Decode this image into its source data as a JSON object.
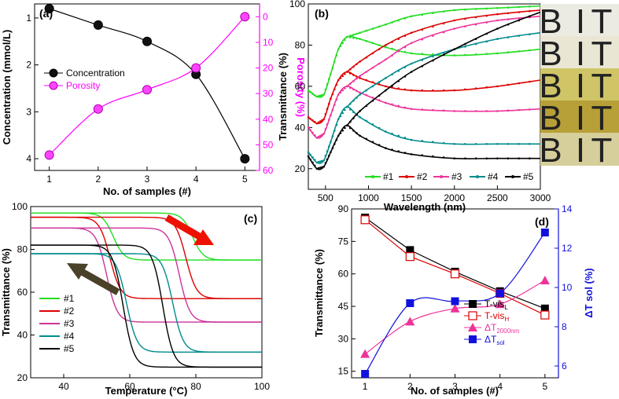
{
  "chart_data": [
    {
      "panel": "(a)",
      "type": "scatter",
      "xlabel": "No. of samples (#)",
      "ylabel_left": "Concentration (mmol/L)",
      "ylabel_right": "Porosity (%)",
      "xlim": [
        0.7,
        5.3
      ],
      "ylim_left": [
        4.25,
        0.7
      ],
      "ylim_right": [
        60,
        -5
      ],
      "xticks": [
        "1",
        "2",
        "3",
        "4",
        "5"
      ],
      "yticks_left": [
        "1",
        "2",
        "3",
        "4"
      ],
      "yticks_right": [
        "0",
        "10",
        "20",
        "30",
        "40",
        "50",
        "60"
      ],
      "series": [
        {
          "name": "Concentration",
          "axis": "left",
          "color": "#000000",
          "x": [
            1,
            2,
            3,
            4,
            5
          ],
          "y": [
            0.8,
            1.15,
            1.5,
            2.2,
            4.0
          ]
        },
        {
          "name": "Porosity",
          "axis": "right",
          "color": "#ff00ff",
          "x": [
            1,
            2,
            3,
            4,
            5
          ],
          "y": [
            54,
            36,
            28.5,
            20,
            0
          ]
        }
      ],
      "legend": [
        "Concentration",
        "Porosity"
      ]
    },
    {
      "panel": "(b)",
      "type": "line",
      "xlabel": "Wavelength (nm)",
      "ylabel": "Transmittance (%)",
      "xlim": [
        300,
        3000
      ],
      "ylim": [
        10,
        100
      ],
      "xticks": [
        "500",
        "1000",
        "1500",
        "2000",
        "2500",
        "3000"
      ],
      "yticks": [
        "20",
        "40",
        "60",
        "80",
        "100"
      ],
      "series_group": "pairs",
      "series": [
        {
          "name": "#1",
          "color": "#22dd22",
          "low": {
            "x": [
              300,
              400,
              480,
              560,
              650,
              750,
              900,
              1200,
              1500,
              2000,
              2500,
              3000
            ],
            "y": [
              58,
              55,
              56,
              66,
              78,
              84,
              83,
              79,
              76,
              75,
              76,
              78
            ]
          },
          "high": {
            "x": [
              750,
              900,
              1200,
              1500,
              2000,
              2500,
              3000
            ],
            "y": [
              84,
              86,
              90,
              94,
              97,
              98,
              99
            ]
          }
        },
        {
          "name": "#2",
          "color": "#dd0000",
          "low": {
            "x": [
              300,
              400,
              480,
              560,
              650,
              750,
              900,
              1200,
              1500,
              2000,
              2500,
              3000
            ],
            "y": [
              45,
              42,
              44,
              54,
              63,
              67,
              64,
              60,
              58,
              58,
              60,
              63
            ]
          },
          "high": {
            "x": [
              750,
              900,
              1200,
              1500,
              2000,
              2500,
              3000
            ],
            "y": [
              67,
              72,
              80,
              86,
              92,
              95,
              97
            ]
          }
        },
        {
          "name": "#3",
          "color": "#ee3399",
          "low": {
            "x": [
              300,
              400,
              480,
              560,
              650,
              750,
              900,
              1200,
              1500,
              2000,
              2500,
              3000
            ],
            "y": [
              40,
              35,
              37,
              46,
              56,
              60,
              57,
              52,
              49,
              48,
              48,
              49
            ]
          },
          "high": {
            "x": [
              750,
              900,
              1200,
              1500,
              2000,
              2500,
              3000
            ],
            "y": [
              60,
              65,
              73,
              81,
              88,
              92,
              94
            ]
          }
        },
        {
          "name": "#4",
          "color": "#008b8b",
          "low": {
            "x": [
              300,
              400,
              480,
              560,
              650,
              750,
              900,
              1200,
              1500,
              2000,
              2500,
              3000
            ],
            "y": [
              28,
              23,
              24,
              33,
              44,
              50,
              45,
              38,
              34,
              32,
              32,
              32
            ]
          },
          "high": {
            "x": [
              750,
              900,
              1200,
              1500,
              2000,
              2500,
              3000
            ],
            "y": [
              50,
              56,
              64,
              71,
              78,
              83,
              86
            ]
          }
        },
        {
          "name": "#5",
          "color": "#000000",
          "low": {
            "x": [
              300,
              400,
              480,
              560,
              650,
              750,
              900,
              1200,
              1500,
              2000,
              2500,
              3000
            ],
            "y": [
              26,
              20,
              21,
              28,
              36,
              41,
              36,
              30,
              27,
              25,
              25,
              25
            ]
          },
          "high": {
            "x": [
              750,
              900,
              1200,
              1500,
              2000,
              2500,
              3000
            ],
            "y": [
              41,
              48,
              58,
              67,
              78,
              88,
              96
            ]
          }
        }
      ],
      "legend": [
        "#1",
        "#2",
        "#3",
        "#4",
        "#5"
      ],
      "inset_photo_rows": [
        [
          "B",
          "I",
          "T"
        ],
        [
          "B",
          "I",
          "T"
        ],
        [
          "B",
          "I",
          "T"
        ],
        [
          "B",
          "I",
          "T"
        ],
        [
          "B",
          "I",
          "T"
        ]
      ]
    },
    {
      "panel": "(c)",
      "type": "line",
      "xlabel": "Temperature (°C)",
      "ylabel": "Transmittance (%)",
      "xlim": [
        30,
        100
      ],
      "ylim": [
        20,
        100
      ],
      "xticks": [
        "40",
        "60",
        "80",
        "100"
      ],
      "yticks": [
        "20",
        "40",
        "60",
        "80",
        "100"
      ],
      "series": [
        {
          "name": "#1",
          "color": "#22dd22",
          "heating_Tc": 79,
          "cooling_Tc": 55,
          "high": 97,
          "low": 75
        },
        {
          "name": "#2",
          "color": "#dd0000",
          "heating_Tc": 77,
          "cooling_Tc": 54,
          "high": 95,
          "low": 57
        },
        {
          "name": "#3",
          "color": "#cc3399",
          "heating_Tc": 75,
          "cooling_Tc": 53,
          "high": 90,
          "low": 46
        },
        {
          "name": "#4",
          "color": "#008b8b",
          "heating_Tc": 73,
          "cooling_Tc": 59,
          "high": 78,
          "low": 32
        },
        {
          "name": "#5",
          "color": "#000000",
          "heating_Tc": 70,
          "cooling_Tc": 58,
          "high": 82,
          "low": 25
        }
      ],
      "legend": [
        "#1",
        "#2",
        "#3",
        "#4",
        "#5"
      ],
      "annotations": [
        "red arrow: heating",
        "dark arrow: cooling"
      ]
    },
    {
      "panel": "(d)",
      "type": "scatter",
      "xlabel": "No. of samples (#)",
      "ylabel_left": "Transmittance (%)",
      "ylabel_right": "ΔT sol (%)",
      "xlim": [
        0.7,
        5.3
      ],
      "ylim_left": [
        12,
        90
      ],
      "ylim_right": [
        5.4,
        14
      ],
      "xticks": [
        "1",
        "2",
        "3",
        "4",
        "5"
      ],
      "yticks_left": [
        "15",
        "30",
        "45",
        "60",
        "75",
        "90"
      ],
      "yticks_right": [
        "6",
        "8",
        "10",
        "12",
        "14"
      ],
      "series": [
        {
          "name": "T-vis_L",
          "axis": "left",
          "color": "#000000",
          "marker": "square-filled",
          "x": [
            1,
            2,
            3,
            4,
            5
          ],
          "y": [
            86,
            71,
            61,
            52,
            44
          ]
        },
        {
          "name": "T-vis_H",
          "axis": "left",
          "color": "#dd0000",
          "marker": "square-open",
          "x": [
            1,
            2,
            3,
            4,
            5
          ],
          "y": [
            85,
            68,
            60,
            51,
            41
          ]
        },
        {
          "name": "ΔT_2000nm",
          "axis": "left",
          "color": "#ee3399",
          "marker": "triangle",
          "x": [
            1,
            2,
            3,
            4,
            5
          ],
          "y": [
            23,
            38,
            44,
            46,
            57
          ]
        },
        {
          "name": "ΔT_sol",
          "axis": "right",
          "color": "#1111dd",
          "marker": "square-filled",
          "x": [
            1,
            2,
            3,
            4,
            5
          ],
          "y": [
            5.6,
            9.2,
            9.3,
            9.7,
            12.8
          ]
        }
      ],
      "legend": [
        "T-vis_L",
        "T-vis_H",
        "ΔT_2000nm",
        "ΔT_sol"
      ]
    }
  ],
  "text": {
    "a": {
      "label": "(a)",
      "xlabel": "No. of samples (#)",
      "ylabel_left": "Concentration (mmol/L)",
      "ylabel_right": "Porosity (%)",
      "leg1": "Concentration",
      "leg2": "Porosity"
    },
    "b": {
      "label": "(b)",
      "xlabel": "Wavelength (nm)",
      "ylabel": "Transmittance (%)"
    },
    "c": {
      "label": "(c)",
      "xlabel": "Temperature (°C)",
      "ylabel": "Transmittance (%)"
    },
    "d": {
      "label": "(d)",
      "xlabel": "No. of samples (#)",
      "ylabel_left": "Transmittance (%)",
      "ylabel_right": "ΔT sol (%)"
    }
  }
}
